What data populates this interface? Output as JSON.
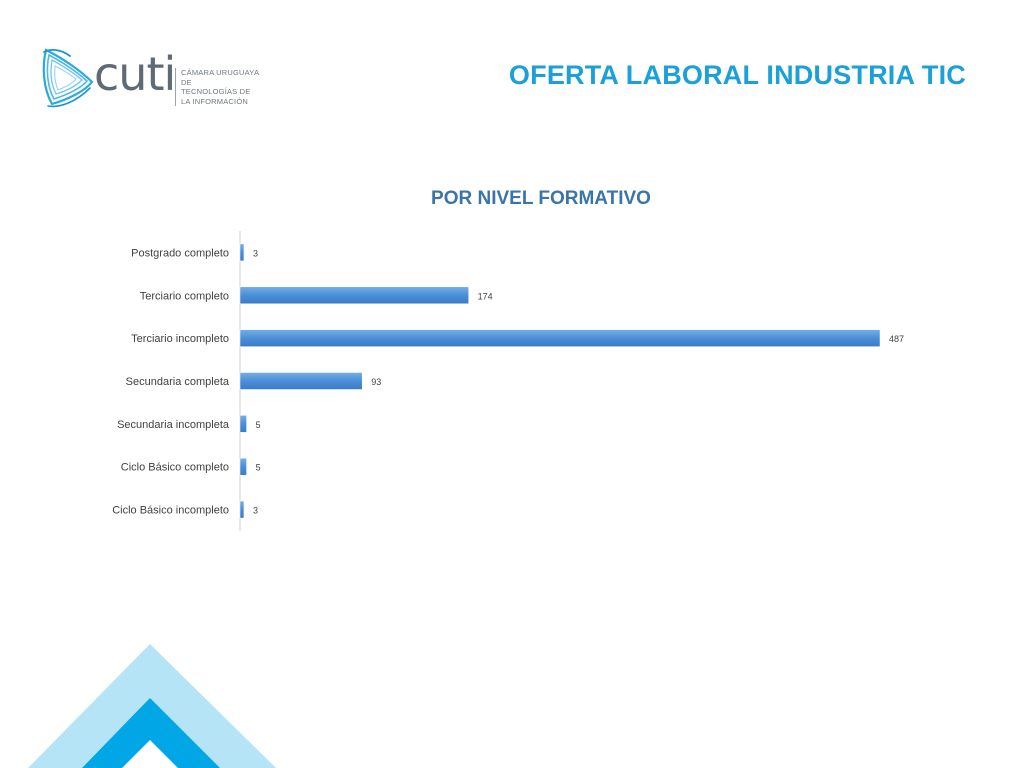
{
  "header": {
    "logo_word": "cuti",
    "logo_sub_lines": [
      "CÁMARA URUGUAYA DE",
      "TECNOLOGÍAS DE",
      "LA INFORMACIÓN"
    ],
    "title": "OFERTA LABORAL INDUSTRIA TIC"
  },
  "colors": {
    "title": "#1ca0d8",
    "chart_title": "#3a74a8",
    "bar": "#4a8fd8",
    "deco_light": "#b4e4f6",
    "deco_dark": "#00a6e6"
  },
  "chart_data": {
    "type": "bar",
    "orientation": "horizontal",
    "title": "POR NIVEL FORMATIVO",
    "categories": [
      "Postgrado completo",
      "Terciario completo",
      "Terciario incompleto",
      "Secundaria completa",
      "Secundaria incompleta",
      "Ciclo Básico completo",
      "Ciclo Básico incompleto"
    ],
    "values": [
      3,
      174,
      487,
      93,
      5,
      5,
      3
    ],
    "data_labels": true,
    "grid": false,
    "legend": "none"
  }
}
